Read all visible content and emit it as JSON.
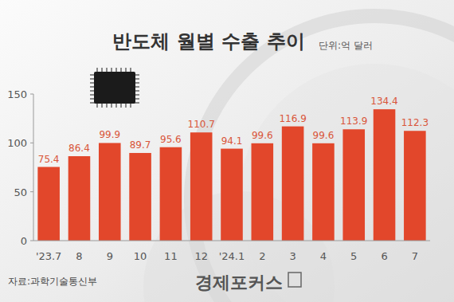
{
  "chart_data": {
    "type": "bar",
    "title": "반도체 월별 수출 추이",
    "unit_label": "단위:억 달러",
    "source": "자료:과학기술통신부",
    "brand": "경제포커스",
    "categories": [
      "'23.7",
      "8",
      "9",
      "10",
      "11",
      "12",
      "'24.1",
      "2",
      "3",
      "4",
      "5",
      "6",
      "7"
    ],
    "values": [
      75.4,
      86.4,
      99.9,
      89.7,
      95.6,
      110.7,
      94.1,
      99.6,
      116.9,
      99.6,
      113.9,
      134.4,
      112.3
    ],
    "color": "#e2472b",
    "ylim": [
      0,
      150
    ],
    "yticks": [
      0,
      50,
      100,
      150
    ],
    "grid": false,
    "data_labels": true
  }
}
